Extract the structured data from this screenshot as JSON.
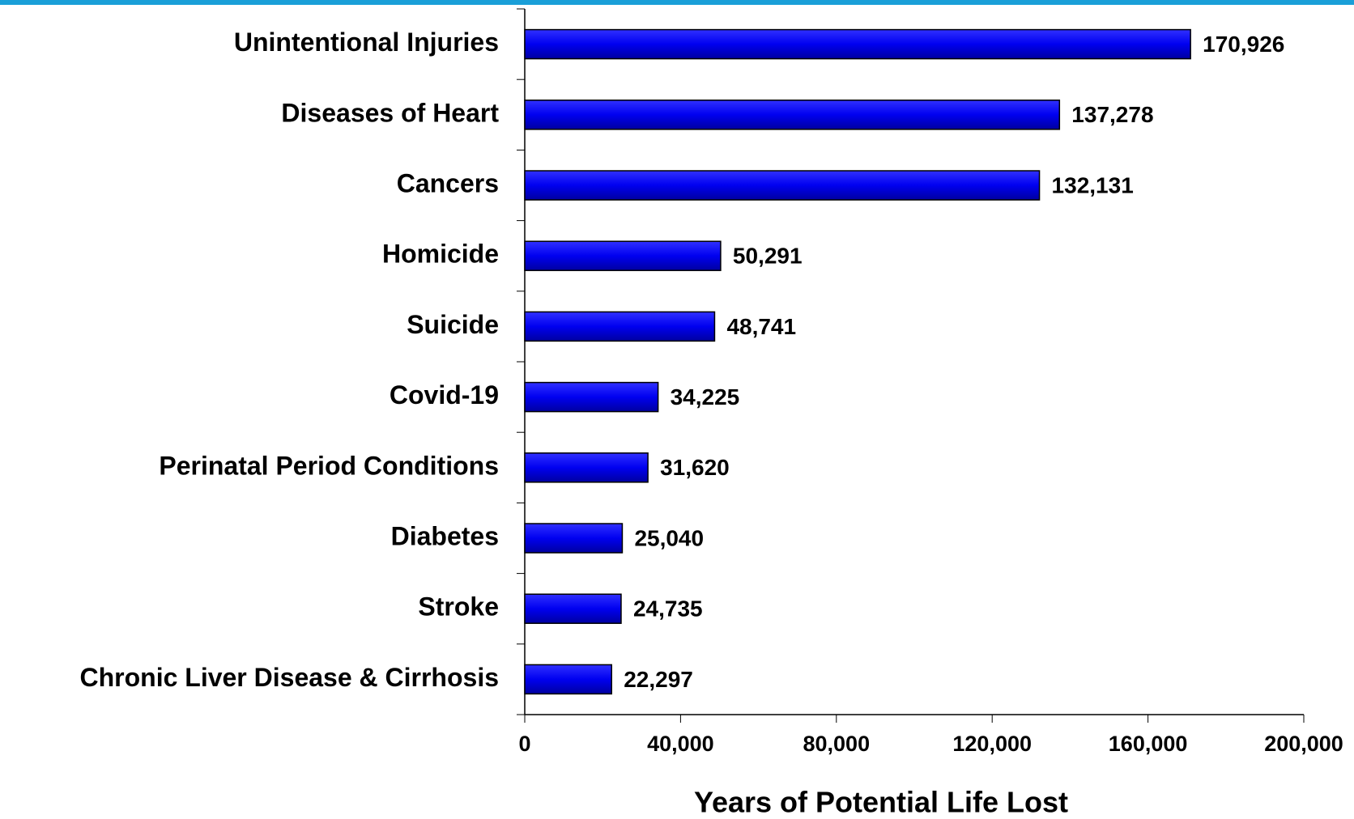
{
  "chart_data": {
    "type": "bar",
    "orientation": "horizontal",
    "xlabel": "Years of Potential Life Lost",
    "categories": [
      "Unintentional Injuries",
      "Diseases of Heart",
      "Cancers",
      "Homicide",
      "Suicide",
      "Covid-19",
      "Perinatal Period Conditions",
      "Diabetes",
      "Stroke",
      "Chronic Liver Disease & Cirrhosis"
    ],
    "values": [
      170926,
      137278,
      132131,
      50291,
      48741,
      34225,
      31620,
      25040,
      24735,
      22297
    ],
    "value_labels": [
      "170,926",
      "137,278",
      "132,131",
      "50,291",
      "48,741",
      "34,225",
      "31,620",
      "25,040",
      "24,735",
      "22,297"
    ],
    "color": "#0000f0",
    "xlim": [
      0,
      200000
    ],
    "xticks": [
      0,
      {
        "value": 40000,
        "label": "40,000"
      },
      {
        "value": 80000,
        "label": "80,000"
      },
      {
        "value": 120000,
        "label": "120,000"
      },
      {
        "value": 160000,
        "label": "160,000"
      },
      {
        "value": 200000,
        "label": "200,000"
      }
    ]
  }
}
